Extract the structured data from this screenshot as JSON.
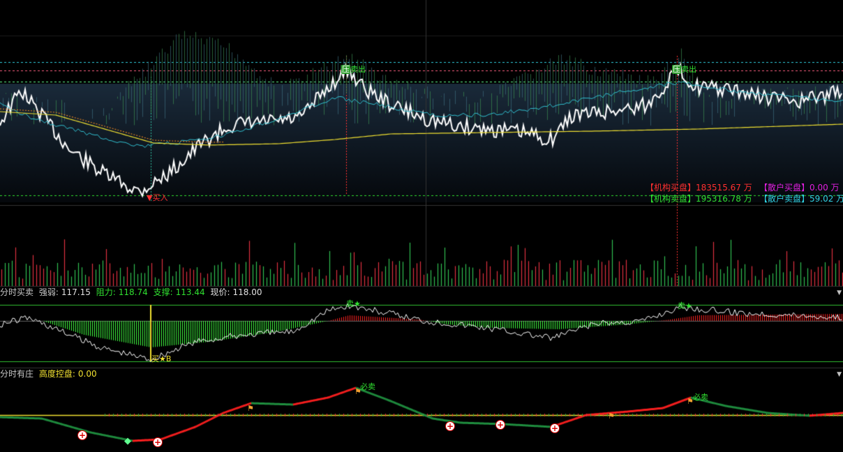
{
  "colors": {
    "background": "#000000",
    "price_line": "#ffffff",
    "avg_line": "#f0e030",
    "cyan_line": "#30c0d0",
    "buy_red": "#ff2020",
    "sell_green": "#30e030",
    "magenta": "#e020e0",
    "cyan_text": "#30d0e0"
  },
  "price_panel": {
    "legend": {
      "inst_buy_label": "【机构买盘】",
      "inst_buy_value": "183515.67 万",
      "retail_buy_label": "【散户买盘】",
      "retail_buy_value": "0.00 万",
      "inst_sell_label": "【机构卖盘】",
      "inst_sell_value": "195316.78 万",
      "retail_sell_label": "【散户卖盘】",
      "retail_sell_value": "59.02 万"
    },
    "markers": {
      "buy_in": "买入",
      "sell_out_1": "卖出",
      "sell_out_2": "卖出",
      "badge_1": "压",
      "badge_2": "压"
    }
  },
  "indicator1": {
    "name": "分时买卖",
    "strength_label": "强弱:",
    "strength_value": "117.15",
    "resist_label": "阻力:",
    "resist_value": "118.74",
    "support_label": "支撑:",
    "support_value": "113.44",
    "price_label": "现价:",
    "price_value": "118.00",
    "sell_mark_1": "卖★",
    "sell_mark_2": "卖★",
    "buy_mark": "买★B"
  },
  "indicator2": {
    "name": "分时有庄",
    "control_label": "高度控盘:",
    "control_value": "0.00",
    "sell_mark_1": "必卖",
    "sell_mark_2": "必卖"
  },
  "icons": {
    "scroll": "chevron-down-icon",
    "plus": "plus-circle-icon",
    "diamond": "diamond-icon",
    "runner": "runner-icon"
  }
}
